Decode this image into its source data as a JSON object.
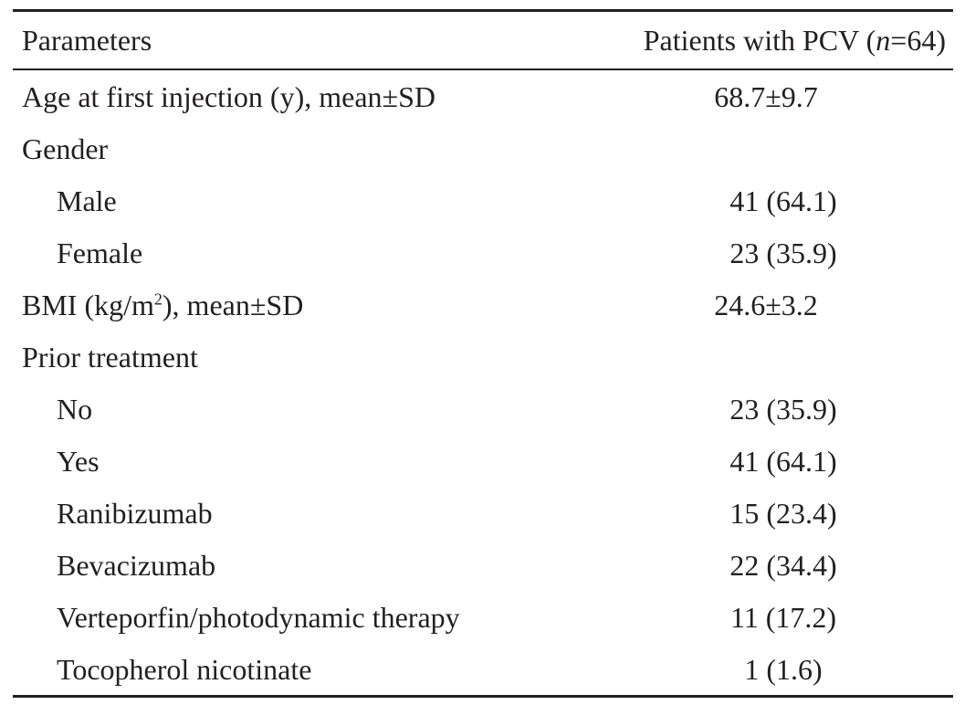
{
  "header": {
    "col1": "Parameters",
    "col2_prefix": "Patients with PCV (",
    "col2_n": "n",
    "col2_suffix": "=64)"
  },
  "rows": [
    {
      "label": "Age at first injection (y), mean±SD",
      "value": "68.7±9.7",
      "indent": false
    },
    {
      "label": "Gender",
      "value": "",
      "indent": false
    },
    {
      "label": "Male",
      "value": "41 (64.1)",
      "indent": true
    },
    {
      "label": "Female",
      "value": "23 (35.9)",
      "indent": true
    },
    {
      "label_prefix": "BMI (kg/m",
      "label_sup": "2",
      "label_suffix": "), mean±SD",
      "value": "24.6±3.2",
      "indent": false
    },
    {
      "label": "Prior treatment",
      "value": "",
      "indent": false
    },
    {
      "label": "No",
      "value": "23 (35.9)",
      "indent": true
    },
    {
      "label": "Yes",
      "value": "41 (64.1)",
      "indent": true
    },
    {
      "label": "Ranibizumab",
      "value": "15 (23.4)",
      "indent": true
    },
    {
      "label": "Bevacizumab",
      "value": "22 (34.4)",
      "indent": true
    },
    {
      "label": "Verteporfin/photodynamic therapy",
      "value": "11 (17.2)",
      "indent": true
    },
    {
      "label": "Tocopherol nicotinate",
      "value": "1 (1.6)",
      "indent": true
    }
  ]
}
